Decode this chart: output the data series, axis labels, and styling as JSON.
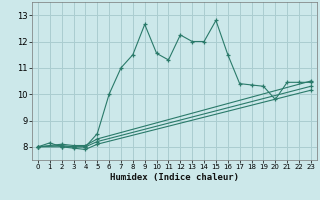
{
  "xlabel": "Humidex (Indice chaleur)",
  "bg_color": "#cce8ea",
  "grid_color": "#aacdd0",
  "line_color": "#2a7a6a",
  "xlim": [
    -0.5,
    23.5
  ],
  "ylim": [
    7.5,
    13.5
  ],
  "xticks": [
    0,
    1,
    2,
    3,
    4,
    5,
    6,
    7,
    8,
    9,
    10,
    11,
    12,
    13,
    14,
    15,
    16,
    17,
    18,
    19,
    20,
    21,
    22,
    23
  ],
  "yticks": [
    8,
    9,
    10,
    11,
    12,
    13
  ],
  "lines": [
    {
      "x": [
        0,
        1,
        2,
        3,
        4,
        5,
        6,
        7,
        8,
        9,
        10,
        11,
        12,
        13,
        14,
        15,
        16,
        17,
        18,
        19,
        20,
        21,
        22,
        23
      ],
      "y": [
        8.0,
        8.15,
        8.0,
        8.0,
        8.0,
        8.5,
        10.0,
        11.0,
        11.5,
        12.65,
        11.55,
        11.3,
        12.25,
        12.0,
        12.0,
        12.8,
        11.5,
        10.4,
        10.35,
        10.3,
        9.8,
        10.45,
        10.45,
        10.45
      ]
    },
    {
      "x": [
        0,
        2,
        3,
        4,
        5,
        23
      ],
      "y": [
        8.0,
        8.1,
        8.05,
        8.05,
        8.3,
        10.5
      ]
    },
    {
      "x": [
        0,
        2,
        3,
        4,
        5,
        23
      ],
      "y": [
        8.0,
        8.05,
        8.0,
        8.0,
        8.2,
        10.3
      ]
    },
    {
      "x": [
        0,
        2,
        3,
        4,
        5,
        23
      ],
      "y": [
        8.0,
        8.0,
        7.95,
        7.9,
        8.1,
        10.15
      ]
    }
  ]
}
